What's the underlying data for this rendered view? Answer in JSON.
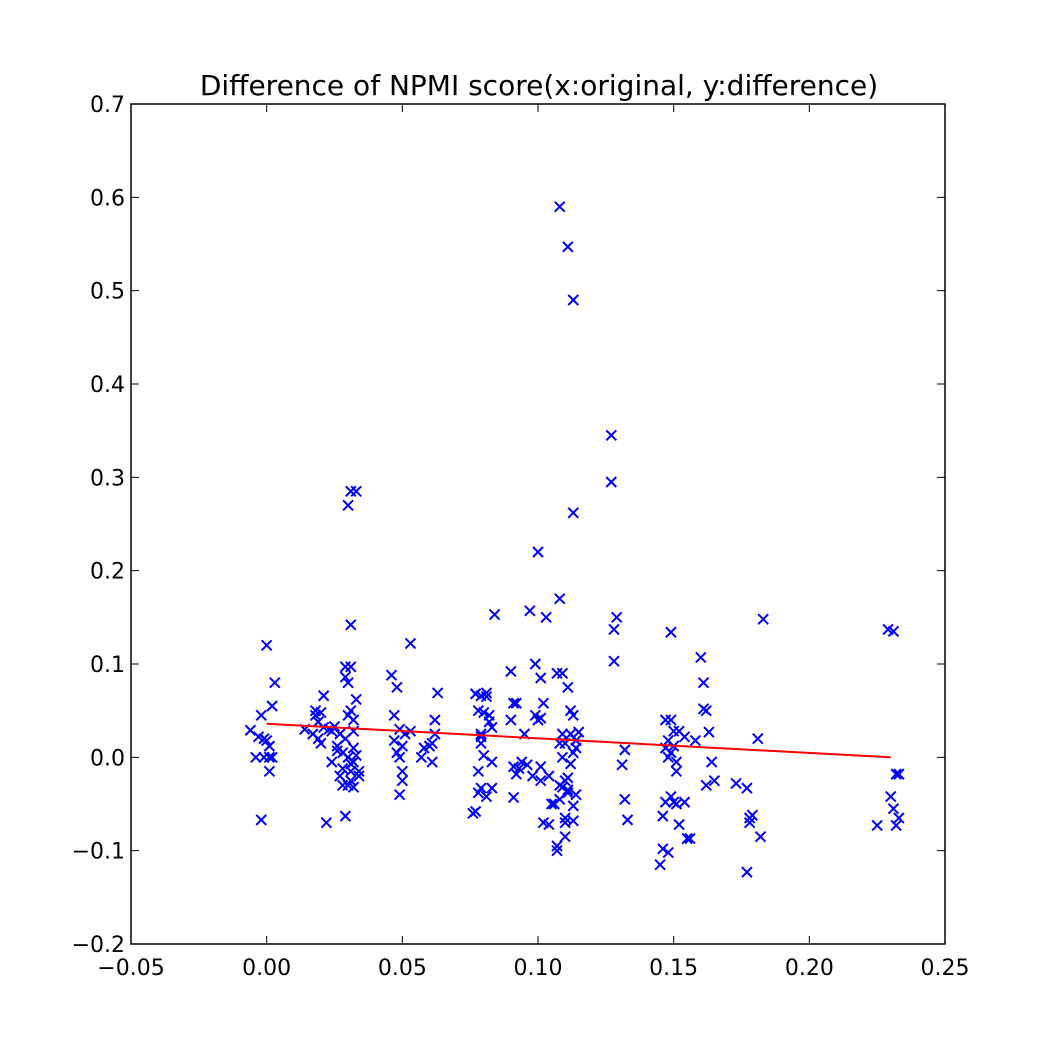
{
  "chart_data": {
    "type": "scatter",
    "title": "Difference of NPMI score(x:original, y:difference)",
    "xlabel": "",
    "ylabel": "",
    "xlim": [
      -0.05,
      0.25
    ],
    "ylim": [
      -0.2,
      0.7
    ],
    "x_ticks": [
      "−0.05",
      "0.00",
      "0.05",
      "0.10",
      "0.15",
      "0.20",
      "0.25"
    ],
    "x_tick_values": [
      -0.05,
      0.0,
      0.05,
      0.1,
      0.15,
      0.2,
      0.25
    ],
    "y_ticks": [
      "−0.2",
      "−0.1",
      "0.0",
      "0.1",
      "0.2",
      "0.3",
      "0.4",
      "0.5",
      "0.6",
      "0.7"
    ],
    "y_tick_values": [
      -0.2,
      -0.1,
      0.0,
      0.1,
      0.2,
      0.3,
      0.4,
      0.5,
      0.6,
      0.7
    ],
    "grid": false,
    "marker": "x",
    "marker_color": "#0000ff",
    "trendline_color": "#ff0000",
    "series": [
      {
        "points": [
          [
            -0.006,
            0.029
          ],
          [
            -0.004,
            0.0
          ],
          [
            -0.003,
            0.022
          ],
          [
            -0.002,
            0.045
          ],
          [
            -0.002,
            -0.067
          ],
          [
            -0.001,
            0.0
          ],
          [
            -0.001,
            0.02
          ],
          [
            0.0,
            0.018
          ],
          [
            0.0,
            0.12
          ],
          [
            0.001,
            -0.015
          ],
          [
            0.001,
            0.0
          ],
          [
            0.001,
            0.012
          ],
          [
            0.002,
            0.0
          ],
          [
            0.002,
            0.055
          ],
          [
            0.003,
            0.08
          ],
          [
            0.014,
            0.03
          ],
          [
            0.017,
            0.025
          ],
          [
            0.018,
            0.05
          ],
          [
            0.018,
            0.045
          ],
          [
            0.019,
            0.038
          ],
          [
            0.019,
            0.02
          ],
          [
            0.02,
            0.015
          ],
          [
            0.02,
            0.048
          ],
          [
            0.021,
            0.032
          ],
          [
            0.021,
            0.066
          ],
          [
            0.022,
            -0.07
          ],
          [
            0.023,
            0.03
          ],
          [
            0.024,
            0.028
          ],
          [
            0.024,
            -0.005
          ],
          [
            0.025,
            0.033
          ],
          [
            0.026,
            0.012
          ],
          [
            0.026,
            0.007
          ],
          [
            0.027,
            0.025
          ],
          [
            0.027,
            -0.02
          ],
          [
            0.028,
            -0.03
          ],
          [
            0.028,
            0.005
          ],
          [
            0.028,
            -0.012
          ],
          [
            0.029,
            0.097
          ],
          [
            0.029,
            0.086
          ],
          [
            0.029,
            -0.063
          ],
          [
            0.029,
            0.02
          ],
          [
            0.03,
            0.08
          ],
          [
            0.03,
            -0.03
          ],
          [
            0.03,
            0.27
          ],
          [
            0.03,
            0.045
          ],
          [
            0.03,
            0.0
          ],
          [
            0.031,
            -0.015
          ],
          [
            0.031,
            0.097
          ],
          [
            0.031,
            -0.007
          ],
          [
            0.031,
            0.285
          ],
          [
            0.031,
            0.142
          ],
          [
            0.031,
            0.05
          ],
          [
            0.031,
            -0.025
          ],
          [
            0.032,
            0.04
          ],
          [
            0.032,
            0.028
          ],
          [
            0.032,
            -0.032
          ],
          [
            0.032,
            0.01
          ],
          [
            0.032,
            -0.005
          ],
          [
            0.033,
            0.062
          ],
          [
            0.033,
            0.285
          ],
          [
            0.033,
            0.002
          ],
          [
            0.034,
            -0.02
          ],
          [
            0.034,
            -0.015
          ],
          [
            0.046,
            0.088
          ],
          [
            0.047,
            0.045
          ],
          [
            0.047,
            0.018
          ],
          [
            0.048,
            0.075
          ],
          [
            0.048,
            0.005
          ],
          [
            0.049,
            0.03
          ],
          [
            0.049,
            0.0
          ],
          [
            0.049,
            -0.04
          ],
          [
            0.05,
            0.012
          ],
          [
            0.05,
            -0.025
          ],
          [
            0.05,
            -0.015
          ],
          [
            0.051,
            0.025
          ],
          [
            0.053,
            0.122
          ],
          [
            0.053,
            0.028
          ],
          [
            0.057,
            0.0
          ],
          [
            0.058,
            0.01
          ],
          [
            0.06,
            0.012
          ],
          [
            0.061,
            0.015
          ],
          [
            0.061,
            -0.005
          ],
          [
            0.062,
            0.025
          ],
          [
            0.062,
            0.04
          ],
          [
            0.063,
            0.069
          ],
          [
            0.076,
            -0.06
          ],
          [
            0.077,
            -0.058
          ],
          [
            0.077,
            0.068
          ],
          [
            0.078,
            -0.038
          ],
          [
            0.078,
            -0.015
          ],
          [
            0.078,
            0.05
          ],
          [
            0.079,
            0.015
          ],
          [
            0.079,
            0.022
          ],
          [
            0.079,
            -0.033
          ],
          [
            0.079,
            0.066
          ],
          [
            0.079,
            0.025
          ],
          [
            0.08,
            0.048
          ],
          [
            0.08,
            0.002
          ],
          [
            0.081,
            0.069
          ],
          [
            0.081,
            0.065
          ],
          [
            0.081,
            -0.042
          ],
          [
            0.082,
            0.038
          ],
          [
            0.082,
            0.045
          ],
          [
            0.083,
            0.032
          ],
          [
            0.083,
            -0.005
          ],
          [
            0.083,
            -0.033
          ],
          [
            0.084,
            0.153
          ],
          [
            0.09,
            0.092
          ],
          [
            0.09,
            0.04
          ],
          [
            0.091,
            0.058
          ],
          [
            0.091,
            -0.01
          ],
          [
            0.091,
            -0.043
          ],
          [
            0.092,
            -0.018
          ],
          [
            0.092,
            0.058
          ],
          [
            0.093,
            -0.012
          ],
          [
            0.094,
            -0.005
          ],
          [
            0.095,
            0.025
          ],
          [
            0.096,
            -0.008
          ],
          [
            0.097,
            0.157
          ],
          [
            0.098,
            -0.02
          ],
          [
            0.099,
            0.1
          ],
          [
            0.099,
            0.045
          ],
          [
            0.1,
            0.04
          ],
          [
            0.1,
            0.22
          ],
          [
            0.101,
            0.042
          ],
          [
            0.101,
            -0.01
          ],
          [
            0.101,
            0.085
          ],
          [
            0.101,
            -0.025
          ],
          [
            0.102,
            0.058
          ],
          [
            0.102,
            -0.07
          ],
          [
            0.103,
            0.15
          ],
          [
            0.104,
            -0.02
          ],
          [
            0.104,
            -0.072
          ],
          [
            0.105,
            -0.05
          ],
          [
            0.106,
            -0.05
          ],
          [
            0.107,
            -0.1
          ],
          [
            0.107,
            0.09
          ],
          [
            0.107,
            -0.095
          ],
          [
            0.108,
            -0.03
          ],
          [
            0.108,
            0.17
          ],
          [
            0.108,
            0.59
          ],
          [
            0.108,
            0.015
          ],
          [
            0.108,
            -0.045
          ],
          [
            0.109,
            0.09
          ],
          [
            0.109,
            -0.032
          ],
          [
            0.109,
            0.025
          ],
          [
            0.109,
            0.0
          ],
          [
            0.11,
            -0.025
          ],
          [
            0.11,
            -0.07
          ],
          [
            0.11,
            0.015
          ],
          [
            0.11,
            -0.065
          ],
          [
            0.11,
            -0.085
          ],
          [
            0.111,
            0.547
          ],
          [
            0.111,
            0.075
          ],
          [
            0.111,
            -0.038
          ],
          [
            0.111,
            -0.022
          ],
          [
            0.111,
            -0.035
          ],
          [
            0.112,
            0.05
          ],
          [
            0.112,
            0.025
          ],
          [
            0.112,
            -0.007
          ],
          [
            0.113,
            0.49
          ],
          [
            0.113,
            0.262
          ],
          [
            0.113,
            0.005
          ],
          [
            0.113,
            -0.068
          ],
          [
            0.113,
            -0.052
          ],
          [
            0.113,
            0.045
          ],
          [
            0.114,
            0.018
          ],
          [
            0.114,
            -0.04
          ],
          [
            0.114,
            0.01
          ],
          [
            0.115,
            0.027
          ],
          [
            0.127,
            0.345
          ],
          [
            0.127,
            0.295
          ],
          [
            0.128,
            0.137
          ],
          [
            0.128,
            0.103
          ],
          [
            0.129,
            0.15
          ],
          [
            0.131,
            -0.008
          ],
          [
            0.132,
            0.008
          ],
          [
            0.132,
            -0.045
          ],
          [
            0.133,
            -0.067
          ],
          [
            0.145,
            -0.115
          ],
          [
            0.146,
            -0.098
          ],
          [
            0.146,
            -0.063
          ],
          [
            0.147,
            0.04
          ],
          [
            0.147,
            0.01
          ],
          [
            0.147,
            -0.048
          ],
          [
            0.148,
            0.0
          ],
          [
            0.148,
            0.018
          ],
          [
            0.148,
            -0.102
          ],
          [
            0.149,
            0.005
          ],
          [
            0.149,
            0.04
          ],
          [
            0.149,
            0.134
          ],
          [
            0.149,
            -0.042
          ],
          [
            0.15,
            -0.048
          ],
          [
            0.15,
            0.028
          ],
          [
            0.15,
            0.012
          ],
          [
            0.151,
            -0.005
          ],
          [
            0.151,
            -0.015
          ],
          [
            0.151,
            -0.05
          ],
          [
            0.152,
            -0.072
          ],
          [
            0.152,
            0.028
          ],
          [
            0.154,
            -0.048
          ],
          [
            0.154,
            0.022
          ],
          [
            0.155,
            -0.087
          ],
          [
            0.156,
            -0.087
          ],
          [
            0.158,
            0.018
          ],
          [
            0.16,
            0.107
          ],
          [
            0.161,
            0.08
          ],
          [
            0.161,
            0.052
          ],
          [
            0.162,
            0.05
          ],
          [
            0.162,
            -0.03
          ],
          [
            0.163,
            0.027
          ],
          [
            0.164,
            -0.005
          ],
          [
            0.165,
            -0.025
          ],
          [
            0.173,
            -0.028
          ],
          [
            0.177,
            -0.123
          ],
          [
            0.177,
            -0.033
          ],
          [
            0.178,
            -0.065
          ],
          [
            0.178,
            -0.07
          ],
          [
            0.179,
            -0.062
          ],
          [
            0.181,
            0.02
          ],
          [
            0.182,
            -0.085
          ],
          [
            0.183,
            0.148
          ],
          [
            0.225,
            -0.073
          ],
          [
            0.229,
            0.137
          ],
          [
            0.23,
            -0.042
          ],
          [
            0.231,
            0.135
          ],
          [
            0.231,
            -0.055
          ],
          [
            0.232,
            -0.018
          ],
          [
            0.232,
            -0.073
          ],
          [
            0.233,
            -0.065
          ],
          [
            0.233,
            -0.018
          ]
        ]
      }
    ],
    "trendline": {
      "x": [
        0.0,
        0.23
      ],
      "y": [
        0.036,
        0.0
      ]
    }
  }
}
